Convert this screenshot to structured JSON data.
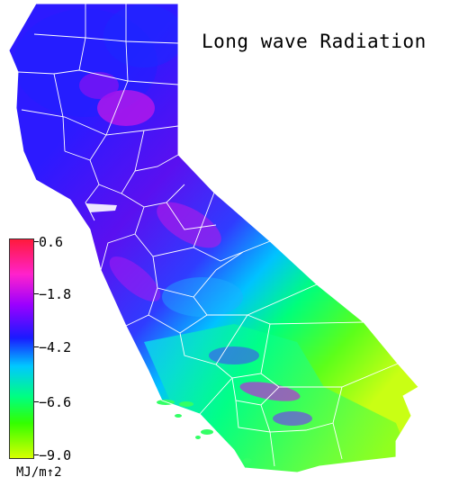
{
  "map": {
    "title": "Long wave Radiation",
    "region": "California",
    "legend": {
      "ticks": [
        "0.6",
        "−1.8",
        "−4.2",
        "−6.6",
        "−9.0"
      ],
      "unit": "MJ/m↑2",
      "colors": [
        "#ff1a3c",
        "#ff22cc",
        "#9a00ff",
        "#1a1aff",
        "#00c8ff",
        "#00ff80",
        "#33ff00",
        "#d6ff00"
      ]
    },
    "colors": {
      "county_lines": "#ffffff",
      "background": "#ffffff"
    }
  }
}
